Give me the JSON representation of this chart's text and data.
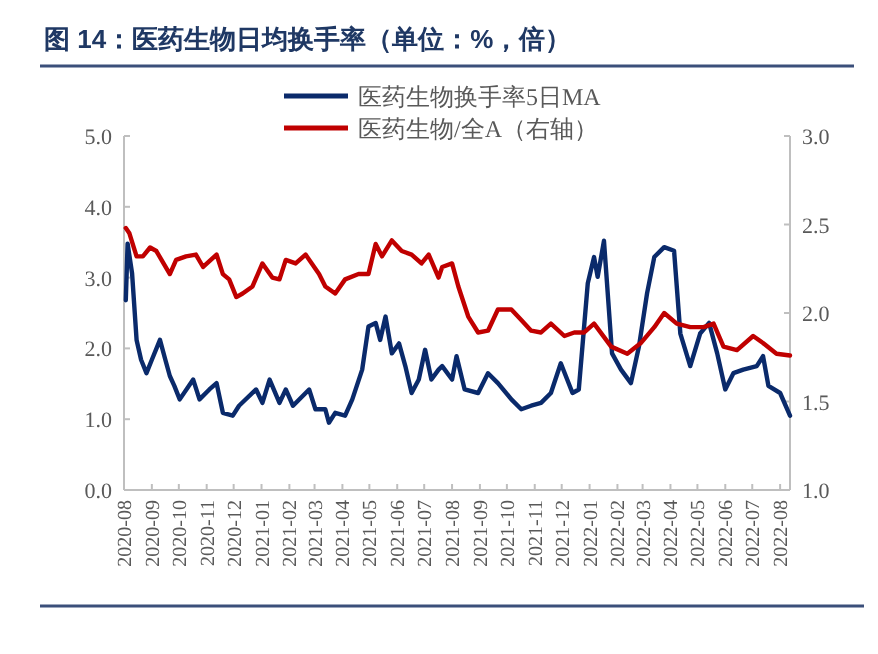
{
  "chart_data": {
    "type": "line",
    "title": "图 14：医药生物日均换手率（单位：%，倍）",
    "xlim": [
      "2020-08-01",
      "2022-08-12"
    ],
    "xticks": [
      {
        "value": "2020-08-01",
        "label": "2020-08"
      },
      {
        "value": "2020-09-01",
        "label": "2020-09"
      },
      {
        "value": "2020-10-01",
        "label": "2020-10"
      },
      {
        "value": "2020-11-01",
        "label": "2020-11"
      },
      {
        "value": "2020-12-01",
        "label": "2020-12"
      },
      {
        "value": "2021-01-01",
        "label": "2021-01"
      },
      {
        "value": "2021-02-01",
        "label": "2021-02"
      },
      {
        "value": "2021-03-01",
        "label": "2021-03"
      },
      {
        "value": "2021-04-01",
        "label": "2021-04"
      },
      {
        "value": "2021-05-01",
        "label": "2021-05"
      },
      {
        "value": "2021-06-01",
        "label": "2021-06"
      },
      {
        "value": "2021-07-01",
        "label": "2021-07"
      },
      {
        "value": "2021-08-01",
        "label": "2021-08"
      },
      {
        "value": "2021-09-01",
        "label": "2021-09"
      },
      {
        "value": "2021-10-01",
        "label": "2021-10"
      },
      {
        "value": "2021-11-01",
        "label": "2021-11"
      },
      {
        "value": "2021-12-01",
        "label": "2021-12"
      },
      {
        "value": "2022-01-01",
        "label": "2022-01"
      },
      {
        "value": "2022-02-01",
        "label": "2022-02"
      },
      {
        "value": "2022-03-01",
        "label": "2022-03"
      },
      {
        "value": "2022-04-01",
        "label": "2022-04"
      },
      {
        "value": "2022-05-01",
        "label": "2022-05"
      },
      {
        "value": "2022-06-01",
        "label": "2022-06"
      },
      {
        "value": "2022-07-01",
        "label": "2022-07"
      },
      {
        "value": "2022-08-01",
        "label": "2022-08"
      }
    ],
    "ylim": [
      0,
      5
    ],
    "yticks": [
      {
        "value": 0,
        "label": "0.0"
      },
      {
        "value": 1,
        "label": "1.0"
      },
      {
        "value": 2,
        "label": "2.0"
      },
      {
        "value": 3,
        "label": "3.0"
      },
      {
        "value": 4,
        "label": "4.0"
      },
      {
        "value": 5,
        "label": "5.0"
      }
    ],
    "y2lim": [
      1,
      3
    ],
    "y2ticks": [
      {
        "value": 1,
        "label": "1.0"
      },
      {
        "value": 1.5,
        "label": "1.5"
      },
      {
        "value": 2,
        "label": "2.0"
      },
      {
        "value": 2.5,
        "label": "2.5"
      },
      {
        "value": 3,
        "label": "3.0"
      }
    ],
    "legend": "top",
    "series": [
      {
        "name": "医药生物换手率5日MA",
        "color": "#0a2a6b",
        "x": [
          "2020-08-03",
          "2020-08-05",
          "2020-08-10",
          "2020-08-15",
          "2020-08-20",
          "2020-08-26",
          "2020-09-01",
          "2020-09-10",
          "2020-09-16",
          "2020-09-21",
          "2020-09-26",
          "2020-10-02",
          "2020-10-17",
          "2020-10-24",
          "2020-11-04",
          "2020-11-12",
          "2020-11-19",
          "2020-11-30",
          "2020-12-07",
          "2020-12-26",
          "2021-01-02",
          "2021-01-10",
          "2021-01-21",
          "2021-01-28",
          "2021-02-05",
          "2021-02-23",
          "2021-03-02",
          "2021-03-13",
          "2021-03-17",
          "2021-03-24",
          "2021-04-04",
          "2021-04-12",
          "2021-04-23",
          "2021-04-30",
          "2021-05-08",
          "2021-05-13",
          "2021-05-19",
          "2021-05-26",
          "2021-06-03",
          "2021-06-10",
          "2021-06-17",
          "2021-06-25",
          "2021-07-02",
          "2021-07-09",
          "2021-07-17",
          "2021-07-21",
          "2021-08-01",
          "2021-08-06",
          "2021-08-15",
          "2021-08-30",
          "2021-09-10",
          "2021-09-21",
          "2021-10-06",
          "2021-10-17",
          "2021-10-28",
          "2021-11-08",
          "2021-11-19",
          "2021-11-30",
          "2021-12-13",
          "2021-12-20",
          "2021-12-30",
          "2022-01-06",
          "2022-01-10",
          "2022-01-17",
          "2022-01-26",
          "2022-02-05",
          "2022-02-16",
          "2022-02-25",
          "2022-03-06",
          "2022-03-14",
          "2022-03-25",
          "2022-04-05",
          "2022-04-12",
          "2022-04-23",
          "2022-05-04",
          "2022-05-14",
          "2022-05-23",
          "2022-06-01",
          "2022-06-10",
          "2022-06-21",
          "2022-07-06",
          "2022-07-13",
          "2022-07-19",
          "2022-08-01",
          "2022-08-12"
        ],
        "values": [
          2.68,
          3.48,
          3.06,
          2.12,
          1.84,
          1.65,
          1.84,
          2.12,
          1.84,
          1.61,
          1.47,
          1.28,
          1.56,
          1.28,
          1.42,
          1.51,
          1.09,
          1.05,
          1.19,
          1.42,
          1.23,
          1.56,
          1.23,
          1.42,
          1.19,
          1.42,
          1.14,
          1.14,
          0.95,
          1.09,
          1.05,
          1.28,
          1.7,
          2.31,
          2.36,
          2.12,
          2.45,
          1.93,
          2.07,
          1.75,
          1.37,
          1.56,
          1.98,
          1.56,
          1.7,
          1.75,
          1.56,
          1.89,
          1.42,
          1.37,
          1.65,
          1.51,
          1.28,
          1.14,
          1.19,
          1.23,
          1.37,
          1.79,
          1.37,
          1.42,
          2.92,
          3.29,
          3.01,
          3.52,
          1.93,
          1.7,
          1.51,
          2.03,
          2.78,
          3.29,
          3.43,
          3.38,
          2.21,
          1.75,
          2.21,
          2.36,
          1.93,
          1.42,
          1.65,
          1.7,
          1.75,
          1.89,
          1.47,
          1.37,
          1.05
        ]
      },
      {
        "name": "医药生物/全A（右轴）",
        "color": "#c00000",
        "axis": "y2",
        "x": [
          "2020-08-03",
          "2020-08-07",
          "2020-08-15",
          "2020-08-22",
          "2020-08-30",
          "2020-09-06",
          "2020-09-14",
          "2020-09-21",
          "2020-09-28",
          "2020-10-09",
          "2020-10-20",
          "2020-10-28",
          "2020-11-12",
          "2020-11-19",
          "2020-11-26",
          "2020-12-04",
          "2020-12-11",
          "2020-12-22",
          "2021-01-02",
          "2021-01-13",
          "2021-01-21",
          "2021-01-28",
          "2021-02-08",
          "2021-02-19",
          "2021-03-06",
          "2021-03-13",
          "2021-03-24",
          "2021-04-04",
          "2021-04-19",
          "2021-04-30",
          "2021-05-08",
          "2021-05-15",
          "2021-05-26",
          "2021-06-06",
          "2021-06-17",
          "2021-06-28",
          "2021-07-06",
          "2021-07-17",
          "2021-07-21",
          "2021-08-01",
          "2021-08-08",
          "2021-08-19",
          "2021-08-30",
          "2021-09-10",
          "2021-09-21",
          "2021-10-06",
          "2021-10-17",
          "2021-10-28",
          "2021-11-08",
          "2021-11-19",
          "2021-12-04",
          "2021-12-15",
          "2021-12-26",
          "2022-01-06",
          "2022-01-25",
          "2022-02-12",
          "2022-02-27",
          "2022-03-14",
          "2022-03-25",
          "2022-04-08",
          "2022-04-23",
          "2022-05-08",
          "2022-05-19",
          "2022-05-30",
          "2022-06-14",
          "2022-07-02",
          "2022-07-13",
          "2022-07-28",
          "2022-08-12"
        ],
        "values": [
          2.48,
          2.45,
          2.32,
          2.32,
          2.37,
          2.35,
          2.28,
          2.22,
          2.3,
          2.32,
          2.33,
          2.26,
          2.33,
          2.22,
          2.19,
          2.09,
          2.11,
          2.15,
          2.28,
          2.2,
          2.19,
          2.3,
          2.28,
          2.33,
          2.22,
          2.15,
          2.11,
          2.19,
          2.22,
          2.22,
          2.39,
          2.32,
          2.41,
          2.35,
          2.33,
          2.28,
          2.33,
          2.2,
          2.26,
          2.28,
          2.15,
          1.98,
          1.89,
          1.9,
          2.02,
          2.02,
          1.96,
          1.9,
          1.89,
          1.94,
          1.87,
          1.89,
          1.89,
          1.94,
          1.81,
          1.77,
          1.83,
          1.92,
          2.0,
          1.94,
          1.92,
          1.92,
          1.94,
          1.81,
          1.79,
          1.87,
          1.83,
          1.77,
          1.76
        ]
      }
    ]
  }
}
